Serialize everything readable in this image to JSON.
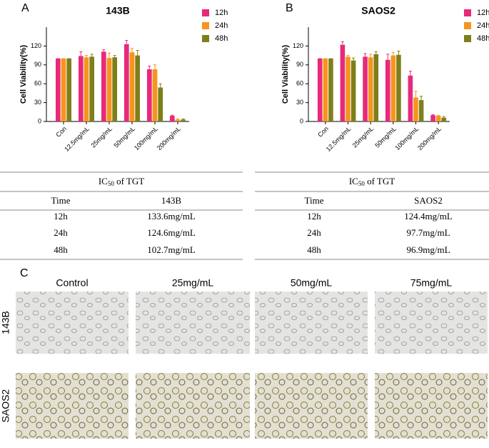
{
  "chart_data": [
    {
      "type": "bar",
      "panel": "A",
      "title": "143B",
      "y_label": "Cell Viability(%)",
      "categories": [
        "Con",
        "12.5mg/mL",
        "25mg/mL",
        "50mg/mL",
        "100mg/mL",
        "200mg/mL"
      ],
      "series": [
        {
          "name": "12h",
          "color": "#e8297a",
          "values": [
            100,
            104,
            111,
            123,
            83,
            9
          ],
          "errors": [
            0,
            7,
            3,
            6,
            5,
            1
          ]
        },
        {
          "name": "24h",
          "color": "#f7941d",
          "values": [
            100,
            102,
            101,
            110,
            83,
            3
          ],
          "errors": [
            0,
            3,
            8,
            6,
            7,
            1
          ]
        },
        {
          "name": "48h",
          "color": "#7f7f1a",
          "values": [
            100,
            103,
            102,
            105,
            54,
            3
          ],
          "errors": [
            0,
            4,
            3,
            8,
            6,
            1
          ]
        }
      ],
      "ylim": [
        0,
        150
      ],
      "yticks": [
        0,
        30,
        60,
        90,
        120
      ]
    },
    {
      "type": "bar",
      "panel": "B",
      "title": "SAOS2",
      "y_label": "Cell Viability(%)",
      "categories": [
        "Con",
        "12.5mg/mL",
        "25mg/mL",
        "50mg/mL",
        "100mg/mL",
        "200mg/mL"
      ],
      "series": [
        {
          "name": "12h",
          "color": "#e8297a",
          "values": [
            100,
            122,
            103,
            98,
            73,
            10
          ],
          "errors": [
            0,
            5,
            5,
            9,
            7,
            1
          ]
        },
        {
          "name": "24h",
          "color": "#f7941d",
          "values": [
            100,
            103,
            102,
            105,
            38,
            9
          ],
          "errors": [
            0,
            2,
            5,
            5,
            10,
            1
          ]
        },
        {
          "name": "48h",
          "color": "#7f7f1a",
          "values": [
            100,
            97,
            107,
            106,
            34,
            6
          ],
          "errors": [
            0,
            4,
            4,
            6,
            6,
            2
          ]
        }
      ],
      "ylim": [
        0,
        150
      ],
      "yticks": [
        0,
        30,
        60,
        90,
        120
      ]
    }
  ],
  "tables": [
    {
      "title_parts": [
        "IC",
        "50",
        " of TGT"
      ],
      "rows": [
        [
          "Time",
          "143B"
        ],
        [
          "12h",
          "133.6mg/mL"
        ],
        [
          "24h",
          "124.6mg/mL"
        ],
        [
          "48h",
          "102.7mg/mL"
        ]
      ]
    },
    {
      "title_parts": [
        "IC",
        "50",
        " of TGT"
      ],
      "rows": [
        [
          "Time",
          "SAOS2"
        ],
        [
          "12h",
          "124.4mg/mL"
        ],
        [
          "24h",
          "97.7mg/mL"
        ],
        [
          "48h",
          "96.9mg/mL"
        ]
      ]
    }
  ],
  "panel_c": {
    "panel": "C",
    "columns": [
      "Control",
      "25mg/mL",
      "50mg/mL",
      "75mg/mL"
    ],
    "rows": [
      "143B",
      "SAOS2"
    ]
  }
}
